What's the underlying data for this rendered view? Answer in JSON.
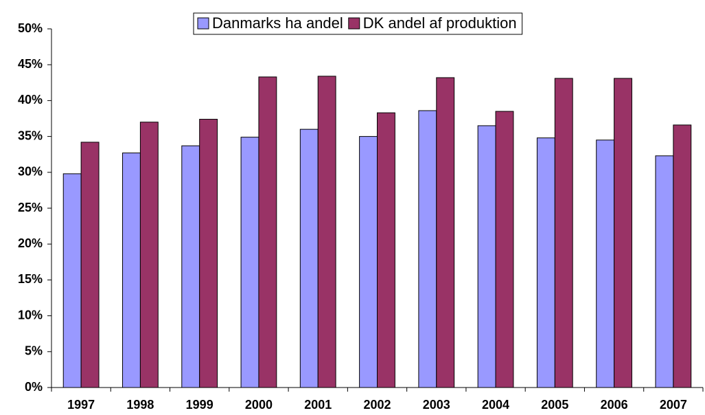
{
  "chart_data": {
    "type": "bar",
    "categories": [
      "1997",
      "1998",
      "1999",
      "2000",
      "2001",
      "2002",
      "2003",
      "2004",
      "2005",
      "2006",
      "2007"
    ],
    "series": [
      {
        "name": "Danmarks ha andel",
        "color": "#9999ff",
        "values": [
          29.8,
          32.7,
          33.7,
          34.9,
          36.0,
          35.0,
          38.6,
          36.5,
          34.8,
          34.5,
          32.3
        ]
      },
      {
        "name": "DK andel af produktion",
        "color": "#993366",
        "values": [
          34.2,
          37.0,
          37.4,
          43.3,
          43.4,
          38.3,
          43.2,
          38.5,
          43.1,
          43.1,
          36.6
        ]
      }
    ],
    "ylim": [
      0,
      50
    ],
    "yticks": [
      {
        "value": 0,
        "label": "0%"
      },
      {
        "value": 5,
        "label": "5%"
      },
      {
        "value": 10,
        "label": "10%"
      },
      {
        "value": 15,
        "label": "15%"
      },
      {
        "value": 20,
        "label": "20%"
      },
      {
        "value": 25,
        "label": "25%"
      },
      {
        "value": 30,
        "label": "30%"
      },
      {
        "value": 35,
        "label": "35%"
      },
      {
        "value": 40,
        "label": "40%"
      },
      {
        "value": 45,
        "label": "45%"
      },
      {
        "value": 50,
        "label": "50%"
      }
    ],
    "grid": false,
    "legend": "top"
  }
}
